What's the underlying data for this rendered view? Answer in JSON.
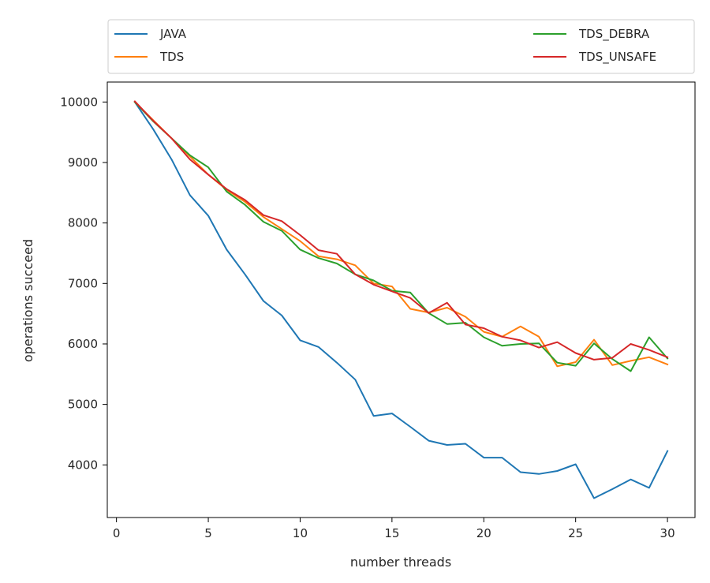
{
  "chart_data": {
    "type": "line",
    "xlabel": "number threads",
    "ylabel": "operations succeed",
    "xlim": [
      -0.5,
      31.5
    ],
    "ylim": [
      3130,
      10330
    ],
    "xticks": [
      0,
      5,
      10,
      15,
      20,
      25,
      30
    ],
    "yticks": [
      4000,
      5000,
      6000,
      7000,
      8000,
      9000,
      10000
    ],
    "grid": false,
    "legend_position": "top, above plot, two columns",
    "x": [
      1,
      2,
      3,
      4,
      5,
      6,
      7,
      8,
      9,
      10,
      11,
      12,
      13,
      14,
      15,
      16,
      17,
      18,
      19,
      20,
      21,
      22,
      23,
      24,
      25,
      26,
      27,
      28,
      29,
      30
    ],
    "series": [
      {
        "name": "JAVA",
        "color": "#1f77b4",
        "values": [
          10000,
          9550,
          9050,
          8460,
          8120,
          7560,
          7150,
          6710,
          6470,
          6060,
          5950,
          5690,
          5410,
          4810,
          4850,
          4630,
          4400,
          4330,
          4350,
          4120,
          4120,
          3880,
          3850,
          3900,
          4010,
          3450,
          3600,
          3760,
          3620,
          4230
        ]
      },
      {
        "name": "TDS",
        "color": "#ff7f0e",
        "values": [
          10000,
          9700,
          9400,
          9100,
          8800,
          8550,
          8350,
          8100,
          7900,
          7700,
          7450,
          7400,
          7300,
          7000,
          6950,
          6580,
          6520,
          6600,
          6450,
          6200,
          6120,
          6290,
          6120,
          5630,
          5700,
          6070,
          5650,
          5720,
          5780,
          5660
        ]
      },
      {
        "name": "TDS_DEBRA",
        "color": "#2ca02c",
        "values": [
          10000,
          9680,
          9400,
          9120,
          8920,
          8520,
          8300,
          8020,
          7870,
          7560,
          7420,
          7330,
          7150,
          7050,
          6880,
          6850,
          6510,
          6330,
          6350,
          6110,
          5970,
          6000,
          6010,
          5690,
          5640,
          6010,
          5750,
          5550,
          6110,
          5760
        ]
      },
      {
        "name": "TDS_UNSAFE",
        "color": "#d62728",
        "values": [
          10010,
          9690,
          9400,
          9050,
          8800,
          8560,
          8380,
          8130,
          8030,
          7800,
          7550,
          7490,
          7150,
          6980,
          6870,
          6760,
          6510,
          6680,
          6320,
          6260,
          6120,
          6060,
          5940,
          6030,
          5850,
          5740,
          5770,
          6000,
          5900,
          5780
        ]
      }
    ]
  }
}
